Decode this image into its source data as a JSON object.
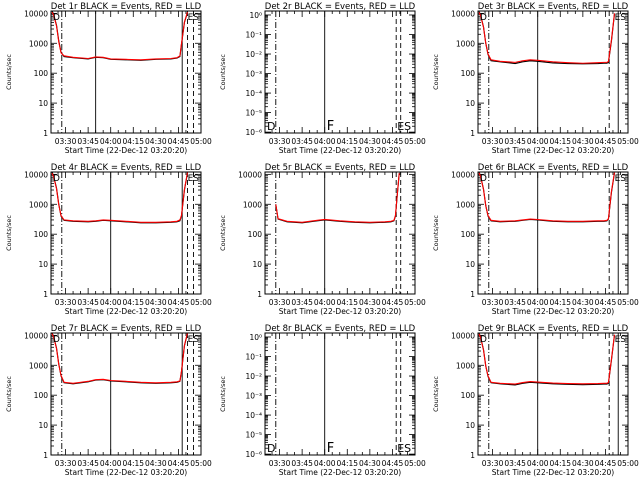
{
  "figure": {
    "xlabel": "Start Time (22-Dec-12 03:20:20)",
    "ylabel": "Counts/sec",
    "xticks": [
      "03:30",
      "03:45",
      "04:00",
      "04:15",
      "04:30",
      "04:45",
      "05:00"
    ],
    "xtick_minutes": [
      30,
      45,
      60,
      75,
      90,
      105,
      120
    ],
    "xlim_minutes": [
      20.33,
      120
    ],
    "colors": {
      "events": "#000000",
      "lld": "#ff0000"
    }
  },
  "chart_data": [
    {
      "type": "line",
      "title": "Det 1r BLACK = Events, RED = LLD",
      "xlabel": "Start Time (22-Dec-12 03:20:20)",
      "ylabel": "Counts/sec",
      "yscale": "log",
      "ylim": [
        1,
        12000
      ],
      "yticklabels": [
        "1",
        "10",
        "100",
        "1000",
        "10000"
      ],
      "xticks": [
        "03:30",
        "03:45",
        "04:00",
        "04:15",
        "04:30",
        "04:45",
        "05:00"
      ],
      "has_data": true,
      "markers": {
        "corner_left": "D",
        "corner_right": "ES",
        "bottom_left": "",
        "bottom_mid": "",
        "bottom_right": ""
      },
      "vlines": {
        "dashdot": [
          27.5
        ],
        "solid": [
          50,
          107.5
        ],
        "dashed": [
          111,
          115
        ]
      },
      "series": [
        {
          "name": "Events",
          "color": "#000000",
          "x": [
            21,
            22,
            24,
            25.5,
            27,
            29,
            35,
            45,
            50,
            55,
            60,
            70,
            80,
            90,
            100,
            104,
            106,
            107,
            109,
            111
          ],
          "y": [
            12000,
            9500,
            4000,
            1200,
            500,
            360,
            330,
            300,
            340,
            330,
            290,
            280,
            270,
            290,
            300,
            320,
            360,
            900,
            5000,
            10500
          ]
        },
        {
          "name": "LLD",
          "color": "#ff0000",
          "x": [
            21,
            22,
            24,
            25.5,
            27,
            29,
            35,
            45,
            50,
            55,
            60,
            70,
            80,
            90,
            100,
            104,
            106,
            107,
            109,
            111
          ],
          "y": [
            11000,
            9000,
            3800,
            1100,
            480,
            380,
            340,
            310,
            350,
            340,
            300,
            290,
            280,
            300,
            310,
            330,
            380,
            950,
            5200,
            11000
          ]
        }
      ]
    },
    {
      "type": "line",
      "title": "Det 2r BLACK = Events, RED = LLD",
      "xlabel": "Start Time (22-Dec-12 03:20:20)",
      "ylabel": "Counts/sec",
      "yscale": "log",
      "ylim": [
        9e-07,
        1.6
      ],
      "yticklabels": [
        "10⁻⁶",
        "10⁻⁵",
        "10⁻⁴",
        "10⁻³",
        "10⁻²",
        "10⁻¹",
        "10⁰"
      ],
      "xticks": [
        "03:30",
        "03:45",
        "04:00",
        "04:15",
        "04:30",
        "04:45",
        "05:00"
      ],
      "has_data": false,
      "markers": {
        "corner_left": "",
        "corner_right": "",
        "bottom_left": "D",
        "bottom_mid": "F",
        "bottom_right": "ES"
      },
      "vlines": {
        "dashdot": [
          27.5
        ],
        "solid": [
          60
        ],
        "dashed": [
          107.5,
          110.5
        ]
      },
      "series": []
    },
    {
      "type": "line",
      "title": "Det 3r BLACK = Events, RED = LLD",
      "xlabel": "Start Time (22-Dec-12 03:20:20)",
      "ylabel": "Counts/sec",
      "yscale": "log",
      "ylim": [
        1,
        12000
      ],
      "yticklabels": [
        "1",
        "10",
        "100",
        "1000",
        "10000"
      ],
      "xticks": [
        "03:30",
        "03:45",
        "04:00",
        "04:15",
        "04:30",
        "04:45",
        "05:00"
      ],
      "has_data": true,
      "markers": {
        "corner_left": "D",
        "corner_right": "ES",
        "bottom_left": "",
        "bottom_mid": "",
        "bottom_right": ""
      },
      "vlines": {
        "dashdot": [
          27.5
        ],
        "solid": [
          60,
          113.5
        ],
        "dashed": [
          107.5
        ]
      },
      "series": [
        {
          "name": "Events",
          "color": "#000000",
          "x": [
            21,
            22,
            24,
            25.5,
            27,
            29,
            35,
            45,
            50,
            55,
            60,
            70,
            80,
            90,
            100,
            104,
            106,
            107,
            109,
            111
          ],
          "y": [
            11500,
            9000,
            3500,
            1000,
            420,
            260,
            240,
            210,
            240,
            260,
            250,
            220,
            210,
            205,
            210,
            215,
            215,
            230,
            1200,
            9500
          ]
        },
        {
          "name": "LLD",
          "color": "#ff0000",
          "x": [
            21,
            22,
            24,
            25.5,
            27,
            29,
            35,
            45,
            50,
            55,
            60,
            70,
            80,
            90,
            100,
            104,
            106,
            107,
            109,
            111
          ],
          "y": [
            10800,
            8600,
            3400,
            1000,
            440,
            280,
            250,
            230,
            260,
            280,
            270,
            240,
            225,
            215,
            225,
            230,
            230,
            245,
            1300,
            10000
          ]
        }
      ]
    },
    {
      "type": "line",
      "title": "Det 4r BLACK = Events, RED = LLD",
      "xlabel": "Start Time (22-Dec-12 03:20:20)",
      "ylabel": "Counts/sec",
      "yscale": "log",
      "ylim": [
        1,
        12000
      ],
      "yticklabels": [
        "1",
        "10",
        "100",
        "1000",
        "10000"
      ],
      "xticks": [
        "03:30",
        "03:45",
        "04:00",
        "04:15",
        "04:30",
        "04:45",
        "05:00"
      ],
      "has_data": true,
      "markers": {
        "corner_left": "D",
        "corner_right": "ES",
        "bottom_left": "",
        "bottom_mid": "",
        "bottom_right": ""
      },
      "vlines": {
        "dashdot": [
          27.5
        ],
        "solid": [
          60,
          107.5
        ],
        "dashed": [
          111,
          115
        ]
      },
      "series": [
        {
          "name": "Events",
          "color": "#000000",
          "x": [
            21,
            22,
            24,
            25.5,
            27,
            29,
            35,
            45,
            50,
            55,
            60,
            70,
            80,
            90,
            100,
            104,
            106,
            107,
            109,
            111
          ],
          "y": [
            12000,
            9000,
            3500,
            1000,
            400,
            290,
            270,
            260,
            270,
            290,
            280,
            260,
            240,
            240,
            250,
            260,
            280,
            400,
            3000,
            11000
          ]
        },
        {
          "name": "LLD",
          "color": "#ff0000",
          "x": [
            21,
            22,
            24,
            25.5,
            27,
            29,
            35,
            45,
            50,
            55,
            60,
            70,
            80,
            90,
            100,
            104,
            106,
            107,
            109,
            111
          ],
          "y": [
            11000,
            8500,
            3300,
            950,
            420,
            300,
            280,
            270,
            280,
            300,
            290,
            270,
            250,
            250,
            260,
            270,
            300,
            420,
            3200,
            11500
          ]
        }
      ]
    },
    {
      "type": "line",
      "title": "Det 5r BLACK = Events, RED = LLD",
      "xlabel": "Start Time (22-Dec-12 03:20:20)",
      "ylabel": "Counts/sec",
      "yscale": "log",
      "ylim": [
        1,
        12000
      ],
      "yticklabels": [
        "1",
        "10",
        "100",
        "1000",
        "10000"
      ],
      "xticks": [
        "03:30",
        "03:45",
        "04:00",
        "04:15",
        "04:30",
        "04:45",
        "05:00"
      ],
      "has_data": true,
      "markers": {
        "corner_left": "",
        "corner_right": "",
        "bottom_left": "",
        "bottom_mid": "",
        "bottom_right": ""
      },
      "vlines": {
        "dashdot": [
          27.5
        ],
        "solid": [
          60
        ],
        "dashed": [
          107.5,
          110.5
        ]
      },
      "series": [
        {
          "name": "Events",
          "color": "#000000",
          "x": [
            27.5,
            29,
            35,
            45,
            50,
            55,
            60,
            70,
            80,
            90,
            100,
            104,
            106,
            107,
            108,
            109.5
          ],
          "y": [
            1000,
            320,
            260,
            240,
            260,
            280,
            300,
            270,
            250,
            240,
            250,
            260,
            280,
            400,
            1500,
            10500
          ]
        },
        {
          "name": "LLD",
          "color": "#ff0000",
          "x": [
            27.5,
            29,
            35,
            45,
            50,
            55,
            60,
            70,
            80,
            90,
            100,
            104,
            106,
            107,
            108,
            109.5
          ],
          "y": [
            1000,
            330,
            270,
            250,
            270,
            290,
            310,
            280,
            260,
            250,
            260,
            270,
            290,
            420,
            1600,
            11000
          ]
        }
      ]
    },
    {
      "type": "line",
      "title": "Det 6r BLACK = Events, RED = LLD",
      "xlabel": "Start Time (22-Dec-12 03:20:20)",
      "ylabel": "Counts/sec",
      "yscale": "log",
      "ylim": [
        1,
        12000
      ],
      "yticklabels": [
        "1",
        "10",
        "100",
        "1000",
        "10000"
      ],
      "xticks": [
        "03:30",
        "03:45",
        "04:00",
        "04:15",
        "04:30",
        "04:45",
        "05:00"
      ],
      "has_data": true,
      "markers": {
        "corner_left": "D",
        "corner_right": "ES",
        "bottom_left": "",
        "bottom_mid": "",
        "bottom_right": ""
      },
      "vlines": {
        "dashdot": [
          27.5
        ],
        "solid": [
          60,
          113.5
        ],
        "dashed": [
          107.5
        ]
      },
      "series": [
        {
          "name": "Events",
          "color": "#000000",
          "x": [
            21,
            22,
            24,
            25.5,
            27,
            29,
            35,
            45,
            50,
            55,
            60,
            70,
            80,
            90,
            100,
            104,
            106,
            107,
            109,
            111
          ],
          "y": [
            12000,
            9000,
            3200,
            900,
            400,
            280,
            260,
            270,
            290,
            310,
            300,
            270,
            260,
            260,
            270,
            270,
            280,
            320,
            2500,
            11000
          ]
        },
        {
          "name": "LLD",
          "color": "#ff0000",
          "x": [
            21,
            22,
            24,
            25.5,
            27,
            29,
            35,
            45,
            50,
            55,
            60,
            70,
            80,
            90,
            100,
            104,
            106,
            107,
            109,
            111
          ],
          "y": [
            11200,
            8600,
            3100,
            880,
            420,
            290,
            270,
            280,
            300,
            320,
            310,
            280,
            270,
            270,
            280,
            280,
            290,
            330,
            2700,
            11500
          ]
        }
      ]
    },
    {
      "type": "line",
      "title": "Det 7r BLACK = Events, RED = LLD",
      "xlabel": "Start Time (22-Dec-12 03:20:20)",
      "ylabel": "Counts/sec",
      "yscale": "log",
      "ylim": [
        1,
        12000
      ],
      "yticklabels": [
        "1",
        "10",
        "100",
        "1000",
        "10000"
      ],
      "xticks": [
        "03:30",
        "03:45",
        "04:00",
        "04:15",
        "04:30",
        "04:45",
        "05:00"
      ],
      "has_data": true,
      "markers": {
        "corner_left": "D",
        "corner_right": "ES",
        "bottom_left": "",
        "bottom_mid": "",
        "bottom_right": ""
      },
      "vlines": {
        "dashdot": [
          27.5
        ],
        "solid": [
          60,
          107.5
        ],
        "dashed": [
          111,
          115
        ]
      },
      "series": [
        {
          "name": "Events",
          "color": "#000000",
          "x": [
            21,
            22,
            24,
            25.5,
            27,
            29,
            35,
            45,
            50,
            55,
            60,
            70,
            80,
            90,
            100,
            104,
            106,
            107,
            109,
            111
          ],
          "y": [
            12000,
            9500,
            3800,
            1100,
            440,
            260,
            240,
            280,
            320,
            330,
            300,
            280,
            260,
            250,
            260,
            270,
            290,
            600,
            4500,
            11500
          ]
        },
        {
          "name": "LLD",
          "color": "#ff0000",
          "x": [
            21,
            22,
            24,
            25.5,
            27,
            29,
            35,
            45,
            50,
            55,
            60,
            70,
            80,
            90,
            100,
            104,
            106,
            107,
            109,
            111
          ],
          "y": [
            11500,
            9000,
            3600,
            1050,
            460,
            270,
            250,
            290,
            330,
            340,
            310,
            290,
            270,
            260,
            270,
            280,
            300,
            620,
            4700,
            12000
          ]
        }
      ]
    },
    {
      "type": "line",
      "title": "Det 8r BLACK = Events, RED = LLD",
      "xlabel": "Start Time (22-Dec-12 03:20:20)",
      "ylabel": "Counts/sec",
      "yscale": "log",
      "ylim": [
        9e-07,
        1.6
      ],
      "yticklabels": [
        "10⁻⁶",
        "10⁻⁵",
        "10⁻⁴",
        "10⁻³",
        "10⁻²",
        "10⁻¹",
        "10⁰"
      ],
      "xticks": [
        "03:30",
        "03:45",
        "04:00",
        "04:15",
        "04:30",
        "04:45",
        "05:00"
      ],
      "has_data": false,
      "markers": {
        "corner_left": "",
        "corner_right": "",
        "bottom_left": "D",
        "bottom_mid": "F",
        "bottom_right": "ES"
      },
      "vlines": {
        "dashdot": [
          27.5
        ],
        "solid": [
          60
        ],
        "dashed": [
          107.5,
          110.5
        ]
      },
      "series": []
    },
    {
      "type": "line",
      "title": "Det 9r BLACK = Events, RED = LLD",
      "xlabel": "Start Time (22-Dec-12 03:20:20)",
      "ylabel": "Counts/sec",
      "yscale": "log",
      "ylim": [
        1,
        12000
      ],
      "yticklabels": [
        "1",
        "10",
        "100",
        "1000",
        "10000"
      ],
      "xticks": [
        "03:30",
        "03:45",
        "04:00",
        "04:15",
        "04:30",
        "04:45",
        "05:00"
      ],
      "has_data": true,
      "markers": {
        "corner_left": "D",
        "corner_right": "ES",
        "bottom_left": "",
        "bottom_mid": "",
        "bottom_right": ""
      },
      "vlines": {
        "dashdot": [
          27.5
        ],
        "solid": [
          60,
          113.5
        ],
        "dashed": [
          107.5
        ]
      },
      "series": [
        {
          "name": "Events",
          "color": "#000000",
          "x": [
            21,
            22,
            24,
            25.5,
            27,
            29,
            35,
            45,
            50,
            55,
            60,
            70,
            80,
            90,
            100,
            104,
            106,
            107,
            109,
            111
          ],
          "y": [
            12000,
            9000,
            3300,
            950,
            420,
            260,
            240,
            220,
            250,
            270,
            260,
            240,
            230,
            225,
            230,
            235,
            235,
            250,
            1500,
            10000
          ]
        },
        {
          "name": "LLD",
          "color": "#ff0000",
          "x": [
            21,
            22,
            24,
            25.5,
            27,
            29,
            35,
            45,
            50,
            55,
            60,
            70,
            80,
            90,
            100,
            104,
            106,
            107,
            109,
            111
          ],
          "y": [
            11200,
            8500,
            3200,
            920,
            440,
            270,
            250,
            235,
            265,
            285,
            275,
            255,
            245,
            240,
            245,
            250,
            250,
            265,
            1600,
            10500
          ]
        }
      ]
    }
  ]
}
